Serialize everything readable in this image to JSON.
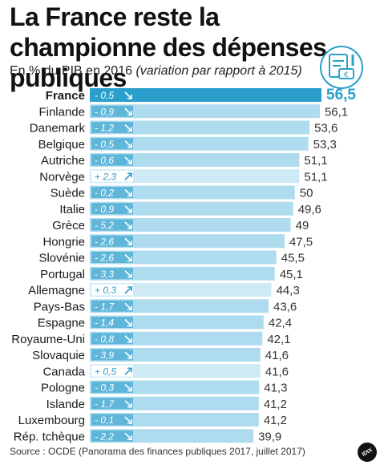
{
  "title": "La France reste la championne des dépenses publiques",
  "subtitle_main": "En % du PIB en 2016",
  "subtitle_italic": "(variation par rapport à 2015)",
  "source": "Source : OCDE (Panorama des finances publiques 2017, juillet 2017)",
  "brand": "IDIX",
  "colors": {
    "highlight": "#2a9fcc",
    "bar": "#aedcee",
    "bar_positive": "#cdeaf5",
    "badge_negative": "#5fb6d9",
    "badge_positive": "#ffffff"
  },
  "chart_data": {
    "type": "bar",
    "orientation": "horizontal",
    "categories": [
      "France",
      "Finlande",
      "Danemark",
      "Belgique",
      "Autriche",
      "Norvège",
      "Suède",
      "Italie",
      "Grèce",
      "Hongrie",
      "Slovénie",
      "Portugal",
      "Allemagne",
      "Pays-Bas",
      "Espagne",
      "Royaume-Uni",
      "Slovaquie",
      "Canada",
      "Pologne",
      "Islande",
      "Luxembourg",
      "Rép. tchèque"
    ],
    "values": [
      56.5,
      56.1,
      53.6,
      53.3,
      51.1,
      51.1,
      50,
      49.6,
      49,
      47.5,
      45.5,
      45.1,
      44.3,
      43.6,
      42.4,
      42.1,
      41.6,
      41.6,
      41.3,
      41.2,
      41.2,
      39.9
    ],
    "value_labels": [
      "56,5",
      "56,1",
      "53,6",
      "53,3",
      "51,1",
      "51,1",
      "50",
      "49,6",
      "49",
      "47,5",
      "45,5",
      "45,1",
      "44,3",
      "43,6",
      "42,4",
      "42,1",
      "41,6",
      "41,6",
      "41,3",
      "41,2",
      "41,2",
      "39,9"
    ],
    "change_labels": [
      "- 0,5",
      "- 0,9",
      "- 1,2",
      "- 0,5",
      "- 0,6",
      "+ 2,3",
      "- 0,2",
      "- 0,9",
      "- 5,2",
      "- 2,6",
      "- 2,6",
      "- 3,3",
      "+ 0,3",
      "- 1,7",
      "- 1,4",
      "- 0,8",
      "- 3,9",
      "+ 0,5",
      "- 0,3",
      "- 1,7",
      "- 0,1",
      "- 2,2"
    ],
    "changes": [
      -0.5,
      -0.9,
      -1.2,
      -0.5,
      -0.6,
      2.3,
      -0.2,
      -0.9,
      -5.2,
      -2.6,
      -2.6,
      -3.3,
      0.3,
      -1.7,
      -1.4,
      -0.8,
      -3.9,
      0.5,
      -0.3,
      -1.7,
      -0.1,
      -2.2
    ],
    "highlight_index": 0,
    "xlim": [
      0,
      56.5
    ]
  }
}
